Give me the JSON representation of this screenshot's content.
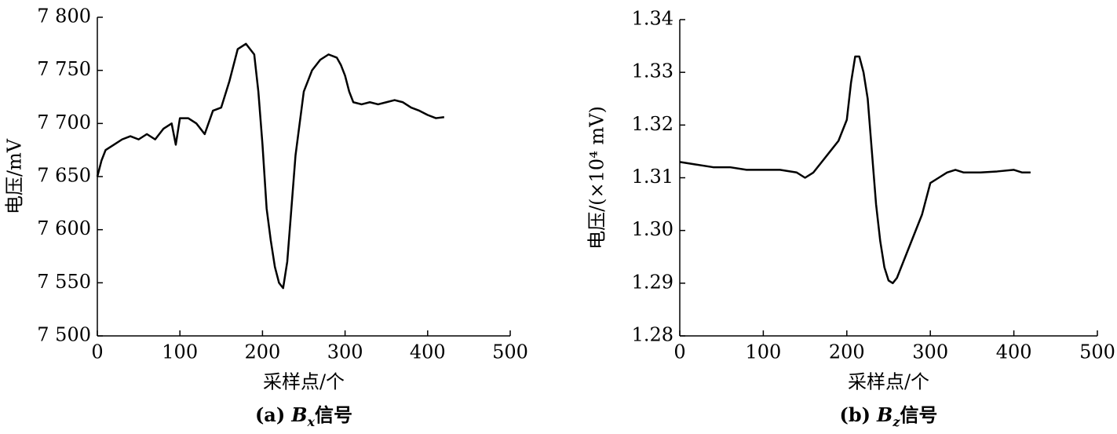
{
  "chart_data": [
    {
      "type": "line",
      "ylabel": "电压/mV",
      "xlabel": "采样点/个",
      "caption": [
        "(a)",
        "B",
        "x",
        "信号"
      ],
      "xlim": [
        0,
        500
      ],
      "xticks": [
        0,
        100,
        200,
        300,
        400,
        500
      ],
      "ylim": [
        7500,
        7800
      ],
      "yticks": [
        {
          "value": 7500,
          "label": "7 500"
        },
        {
          "value": 7550,
          "label": "7 550"
        },
        {
          "value": 7600,
          "label": "7 600"
        },
        {
          "value": 7650,
          "label": "7 650"
        },
        {
          "value": 7700,
          "label": "7 700"
        },
        {
          "value": 7750,
          "label": "7 750"
        },
        {
          "value": 7800,
          "label": "7 800"
        }
      ],
      "series": [
        {
          "color": "#000000",
          "x": [
            0,
            5,
            10,
            20,
            30,
            40,
            50,
            60,
            70,
            80,
            90,
            95,
            100,
            110,
            120,
            130,
            140,
            150,
            160,
            170,
            180,
            190,
            195,
            200,
            205,
            210,
            215,
            220,
            225,
            230,
            235,
            240,
            245,
            250,
            260,
            270,
            280,
            290,
            295,
            300,
            305,
            310,
            320,
            330,
            340,
            350,
            360,
            370,
            380,
            390,
            400,
            410,
            420
          ],
          "values": [
            7650,
            7665,
            7675,
            7680,
            7685,
            7688,
            7685,
            7690,
            7685,
            7695,
            7700,
            7680,
            7705,
            7705,
            7700,
            7690,
            7712,
            7715,
            7740,
            7770,
            7775,
            7765,
            7730,
            7680,
            7620,
            7590,
            7565,
            7550,
            7545,
            7570,
            7620,
            7670,
            7700,
            7730,
            7750,
            7760,
            7765,
            7762,
            7755,
            7745,
            7730,
            7720,
            7718,
            7720,
            7718,
            7720,
            7722,
            7720,
            7715,
            7712,
            7708,
            7705,
            7706
          ]
        }
      ]
    },
    {
      "type": "line",
      "ylabel": "电压/(×10⁴ mV)",
      "xlabel": "采样点/个",
      "caption": [
        "(b)",
        "B",
        "z",
        "信号"
      ],
      "xlim": [
        0,
        500
      ],
      "xticks": [
        0,
        100,
        200,
        300,
        400,
        500
      ],
      "ylim": [
        1.28,
        1.34
      ],
      "yticks": [
        1.28,
        1.29,
        {
          "value": 1.3,
          "label": "1.30"
        },
        1.31,
        1.32,
        1.33,
        1.34
      ],
      "series": [
        {
          "color": "#000000",
          "x": [
            0,
            20,
            40,
            60,
            80,
            100,
            120,
            140,
            150,
            160,
            170,
            180,
            190,
            200,
            205,
            210,
            215,
            220,
            225,
            230,
            235,
            240,
            245,
            250,
            255,
            260,
            270,
            280,
            290,
            300,
            310,
            320,
            330,
            340,
            360,
            380,
            400,
            410,
            420
          ],
          "values": [
            1.313,
            1.3125,
            1.312,
            1.312,
            1.3115,
            1.3115,
            1.3115,
            1.311,
            1.31,
            1.311,
            1.313,
            1.315,
            1.317,
            1.321,
            1.328,
            1.333,
            1.333,
            1.33,
            1.325,
            1.315,
            1.305,
            1.298,
            1.293,
            1.2905,
            1.29,
            1.291,
            1.295,
            1.299,
            1.303,
            1.309,
            1.31,
            1.311,
            1.3115,
            1.311,
            1.311,
            1.3112,
            1.3115,
            1.311,
            1.311
          ]
        }
      ]
    }
  ]
}
